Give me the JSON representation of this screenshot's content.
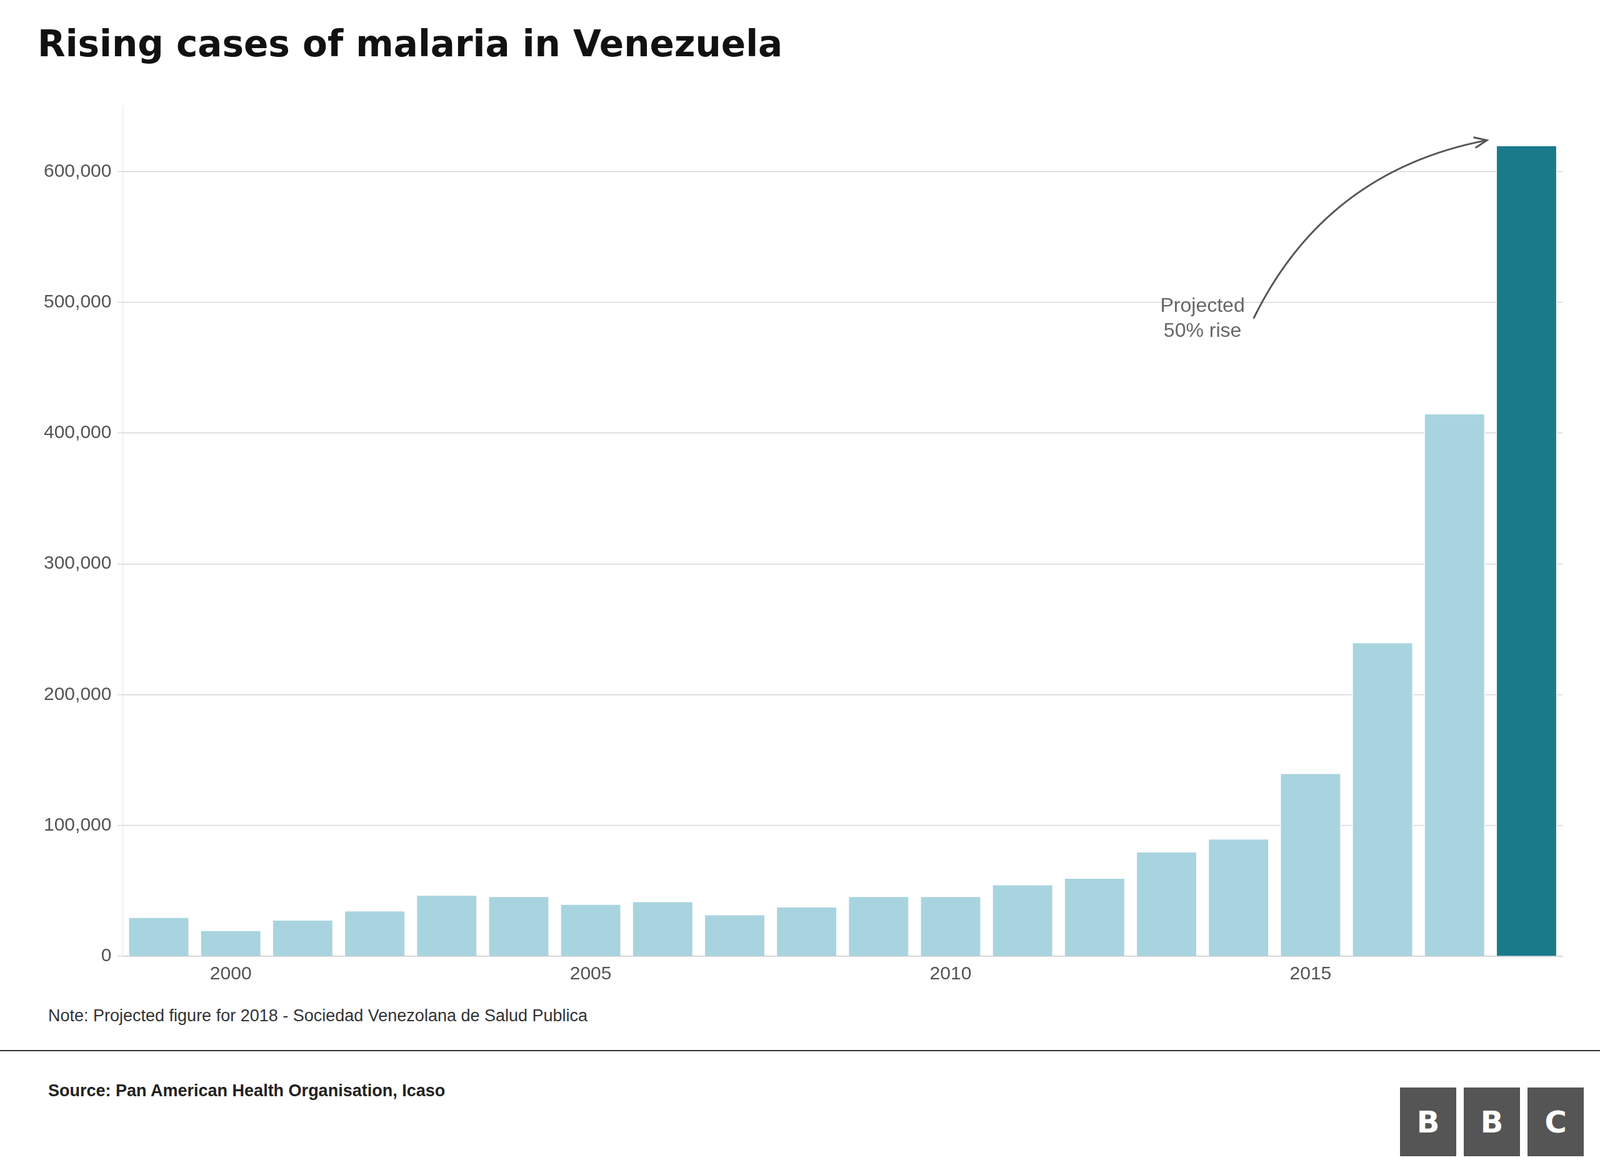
{
  "chart_data": {
    "type": "bar",
    "title": "Rising cases of malaria in Venezuela",
    "categories": [
      null,
      "2000",
      null,
      null,
      null,
      null,
      "2005",
      null,
      null,
      null,
      null,
      "2010",
      null,
      null,
      null,
      null,
      "2015",
      null,
      null,
      null
    ],
    "values": [
      30000,
      20000,
      28000,
      35000,
      47000,
      46000,
      40000,
      42000,
      32000,
      38000,
      46000,
      46000,
      55000,
      60000,
      80000,
      90000,
      140000,
      240000,
      415000,
      620000
    ],
    "colors": [
      "#A8D4E0",
      "#A8D4E0",
      "#A8D4E0",
      "#A8D4E0",
      "#A8D4E0",
      "#A8D4E0",
      "#A8D4E0",
      "#A8D4E0",
      "#A8D4E0",
      "#A8D4E0",
      "#A8D4E0",
      "#A8D4E0",
      "#A8D4E0",
      "#A8D4E0",
      "#A8D4E0",
      "#A8D4E0",
      "#A8D4E0",
      "#A8D4E0",
      "#A8D4E0",
      "#1A7A8A"
    ],
    "ylim": [
      0,
      650000
    ],
    "yticks": [
      0,
      {
        "value": 100000,
        "label": "100,000"
      },
      {
        "value": 200000,
        "label": "200,000"
      },
      {
        "value": 300000,
        "label": "300,000"
      },
      {
        "value": 400000,
        "label": "400,000"
      },
      {
        "value": 500000,
        "label": "500,000"
      },
      {
        "value": 600000,
        "label": "600,000"
      }
    ],
    "grid": true,
    "annotation": "Projected\n50% rise",
    "note": "Note: Projected figure for 2018 - Sociedad Venezolana de Salud Publica",
    "source": "Source: Pan American Health Organisation, Icaso",
    "logo": "BBC"
  }
}
